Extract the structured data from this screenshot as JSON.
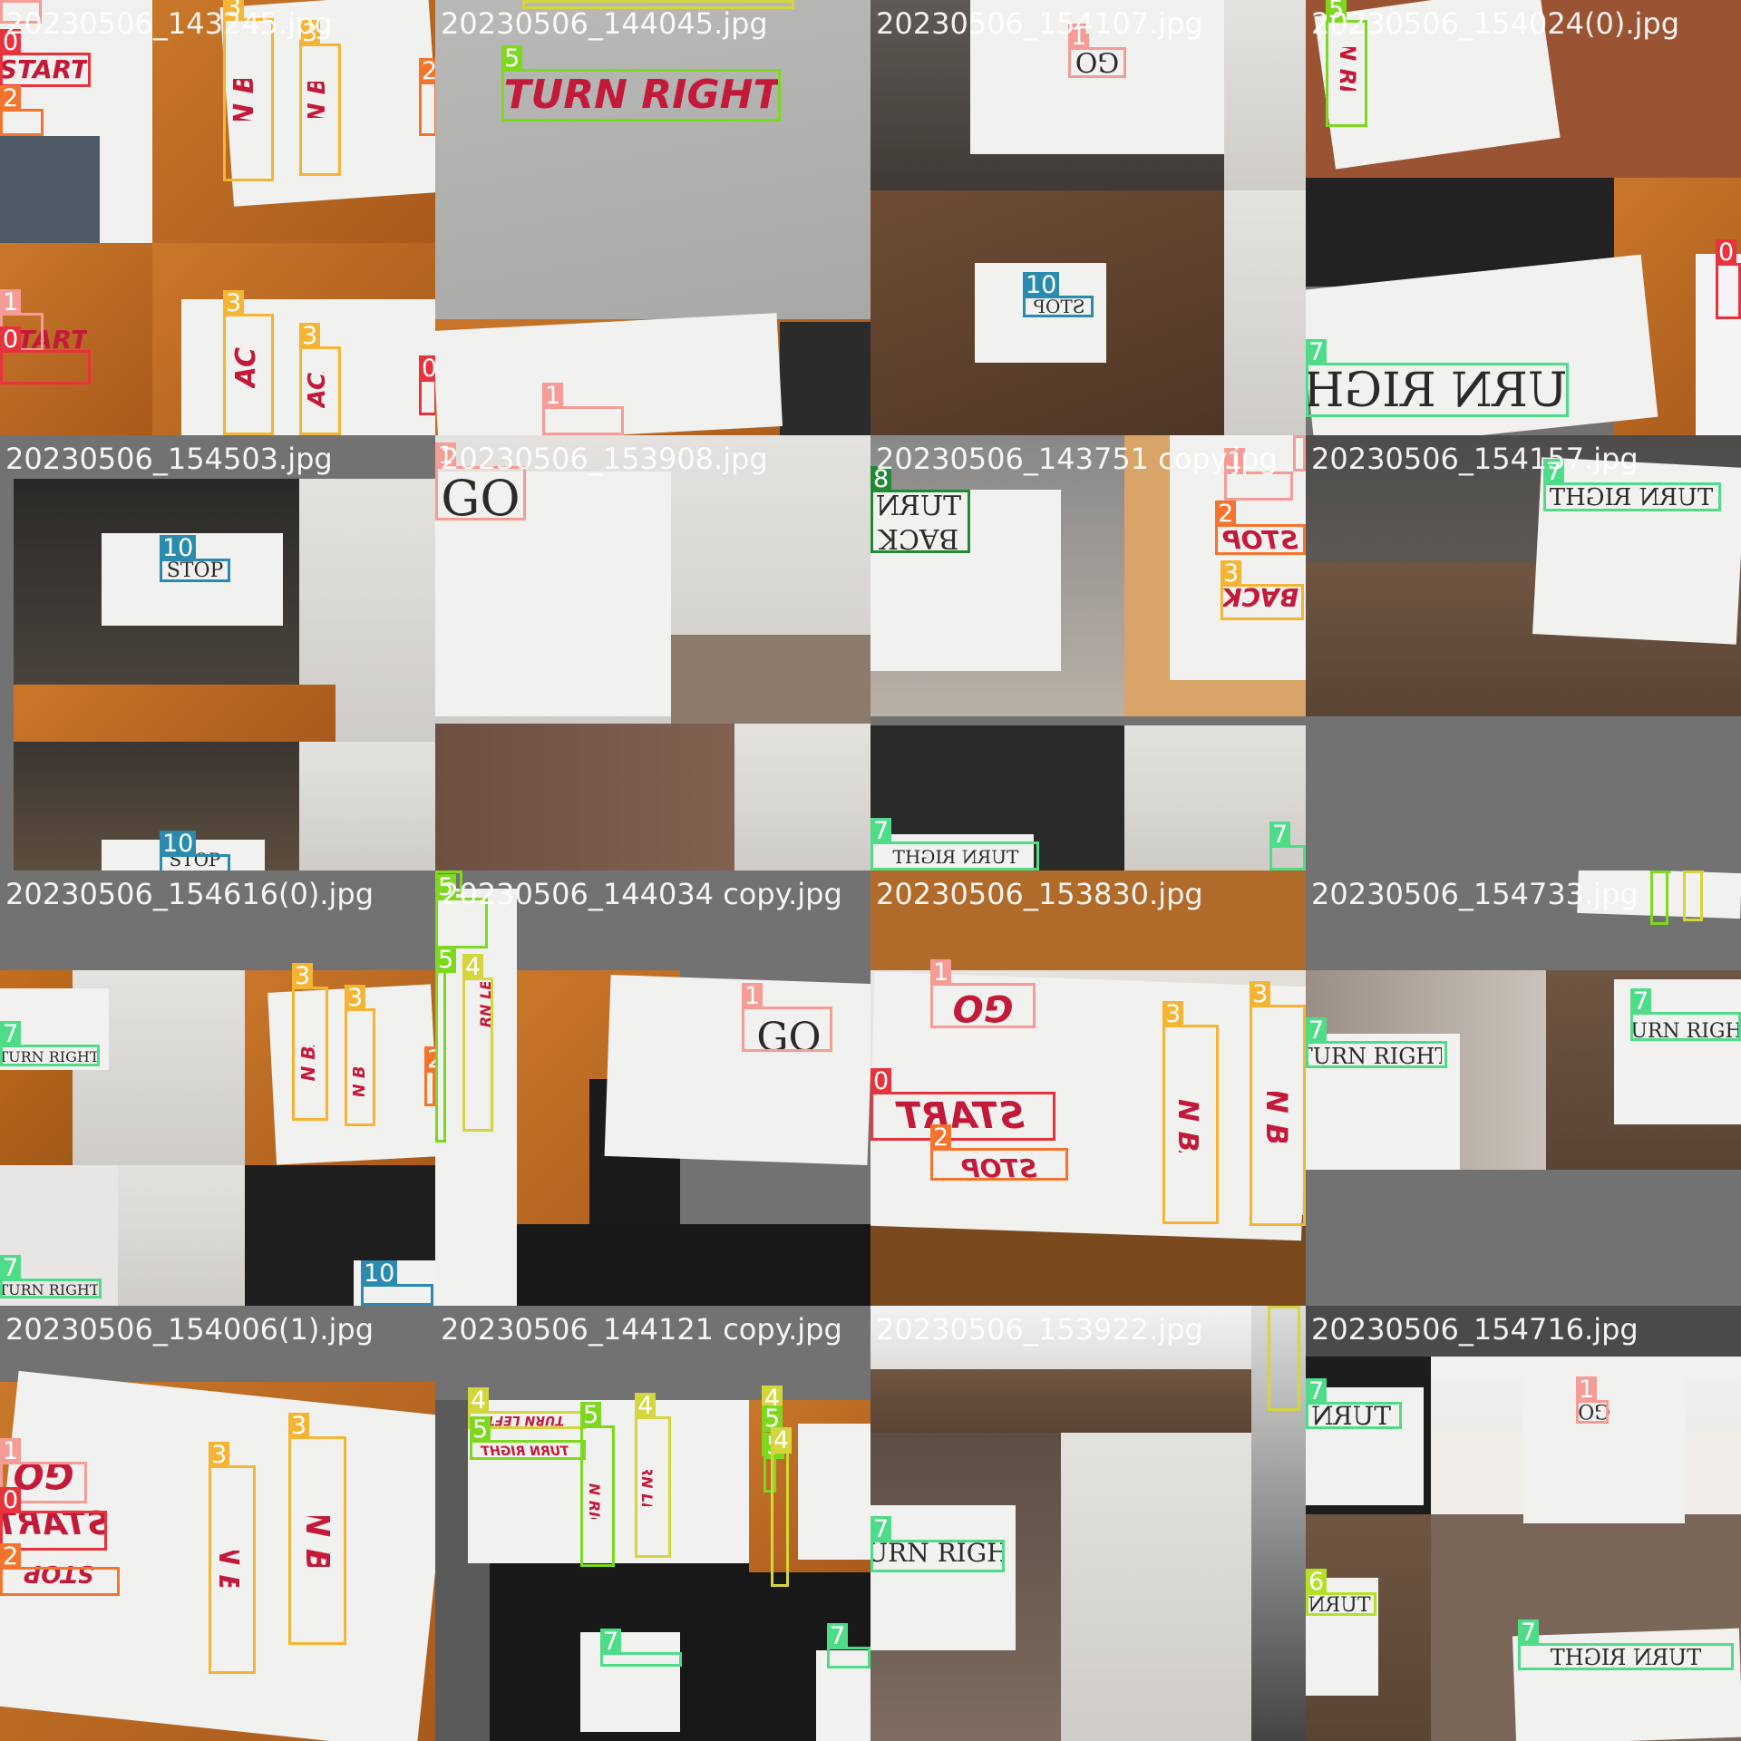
{
  "labels": {
    "filenames": [
      "20230506_143245.jpg",
      "20230506_144045.jpg",
      "20230506_154107.jpg",
      "20230506_154024(0).jpg",
      "20230506_154503.jpg",
      "20230506_153908.jpg",
      "20230506_143751 copy.jpg",
      "20230506_154157.jpg",
      "20230506_154616(0).jpg",
      "20230506_144034 copy.jpg",
      "20230506_153830.jpg",
      "20230506_154733.jpg",
      "20230506_154006(1).jpg",
      "20230506_144121 copy.jpg",
      "20230506_153922.jpg",
      "20230506_154716.jpg"
    ],
    "class_colors": {
      "0": "#e8323c",
      "1": "#f59c96",
      "2": "#f5742d",
      "3": "#f5b433",
      "4": "#d3d63c",
      "5": "#7ed81f",
      "6": "#b5e025",
      "7": "#4fdc89",
      "8": "#1f8a33",
      "10": "#2a8bae"
    },
    "sign_texts": {
      "start": "START",
      "go": "GO",
      "stop": "STOP",
      "turn_back": "TURN BACK",
      "turn_left": "TURN LEFT",
      "turn_right": "TURN RIGHT",
      "turn": "TURN",
      "back": "BACK"
    }
  }
}
